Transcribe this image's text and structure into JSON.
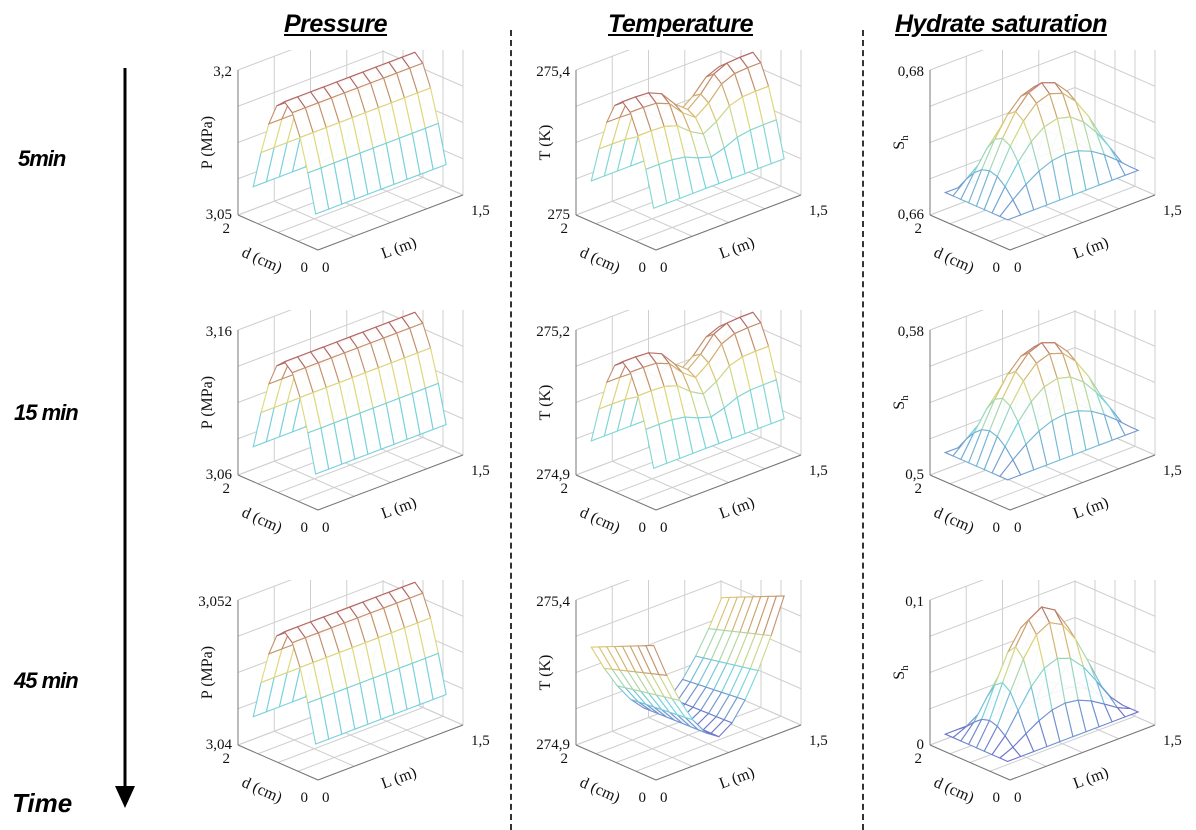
{
  "columns": [
    "Pressure",
    "Temperature",
    "Hydrate saturation"
  ],
  "rows": [
    "5min",
    "15 min",
    "45 min"
  ],
  "time_label": "Time",
  "axis": {
    "d_label": "d (cm)",
    "L_label": "L (m)",
    "d_ticks": [
      "2",
      "0"
    ],
    "L_ticks": [
      "0",
      "1,5"
    ],
    "P_label": "P (MPa)",
    "T_label": "T (K)",
    "S_label": "S",
    "S_sub": "h"
  },
  "chart_data": [
    {
      "type": "surface",
      "title": "Pressure",
      "time": "5min",
      "zlabel": "P (MPa)",
      "zlim": [
        "3,05",
        "3,2"
      ],
      "xlabel": "L (m)",
      "xlim": [
        0,
        1.5
      ],
      "ylabel": "d (cm)",
      "ylim": [
        0,
        2
      ],
      "shape": "ridge",
      "grid": true
    },
    {
      "type": "surface",
      "title": "Temperature",
      "time": "5min",
      "zlabel": "T (K)",
      "zlim": [
        "275",
        "275,4"
      ],
      "xlabel": "L (m)",
      "xlim": [
        0,
        1.5
      ],
      "ylabel": "d (cm)",
      "ylim": [
        0,
        2
      ],
      "shape": "ridge-dip",
      "grid": true
    },
    {
      "type": "surface",
      "title": "Hydrate saturation",
      "time": "5min",
      "zlabel": "Sh",
      "zlim": [
        "0,66",
        "0,68"
      ],
      "xlabel": "L (m)",
      "xlim": [
        0,
        1.5
      ],
      "ylabel": "d (cm)",
      "ylim": [
        0,
        2
      ],
      "shape": "dome",
      "grid": true
    },
    {
      "type": "surface",
      "title": "Pressure",
      "time": "15 min",
      "zlabel": "P (MPa)",
      "zlim": [
        "3,06",
        "3,16"
      ],
      "xlabel": "L (m)",
      "xlim": [
        0,
        1.5
      ],
      "ylabel": "d (cm)",
      "ylim": [
        0,
        2
      ],
      "shape": "ridge",
      "grid": true
    },
    {
      "type": "surface",
      "title": "Temperature",
      "time": "15 min",
      "zlabel": "T (K)",
      "zlim": [
        "274,9",
        "275,2"
      ],
      "xlabel": "L (m)",
      "xlim": [
        0,
        1.5
      ],
      "ylabel": "d (cm)",
      "ylim": [
        0,
        2
      ],
      "shape": "ridge-dip",
      "grid": true
    },
    {
      "type": "surface",
      "title": "Hydrate saturation",
      "time": "15 min",
      "zlabel": "Sh",
      "zlim": [
        "0,5",
        "0,58"
      ],
      "xlabel": "L (m)",
      "xlim": [
        0,
        1.5
      ],
      "ylabel": "d (cm)",
      "ylim": [
        0,
        2
      ],
      "shape": "dome",
      "grid": true
    },
    {
      "type": "surface",
      "title": "Pressure",
      "time": "45 min",
      "zlabel": "P (MPa)",
      "zlim": [
        "3,04",
        "3,052"
      ],
      "xlabel": "L (m)",
      "xlim": [
        0,
        1.5
      ],
      "ylabel": "d (cm)",
      "ylim": [
        0,
        2
      ],
      "shape": "ridge",
      "grid": true
    },
    {
      "type": "surface",
      "title": "Temperature",
      "time": "45 min",
      "zlabel": "T (K)",
      "zlim": [
        "274,9",
        "275,4"
      ],
      "xlabel": "L (m)",
      "xlim": [
        0,
        1.5
      ],
      "ylabel": "d (cm)",
      "ylim": [
        0,
        2
      ],
      "shape": "valley",
      "grid": true
    },
    {
      "type": "surface",
      "title": "Hydrate saturation",
      "time": "45 min",
      "zlabel": "Sh",
      "zlim": [
        "0",
        "0,1"
      ],
      "xlabel": "L (m)",
      "xlim": [
        0,
        1.5
      ],
      "ylabel": "d (cm)",
      "ylim": [
        0,
        2
      ],
      "shape": "peak",
      "grid": true
    }
  ]
}
